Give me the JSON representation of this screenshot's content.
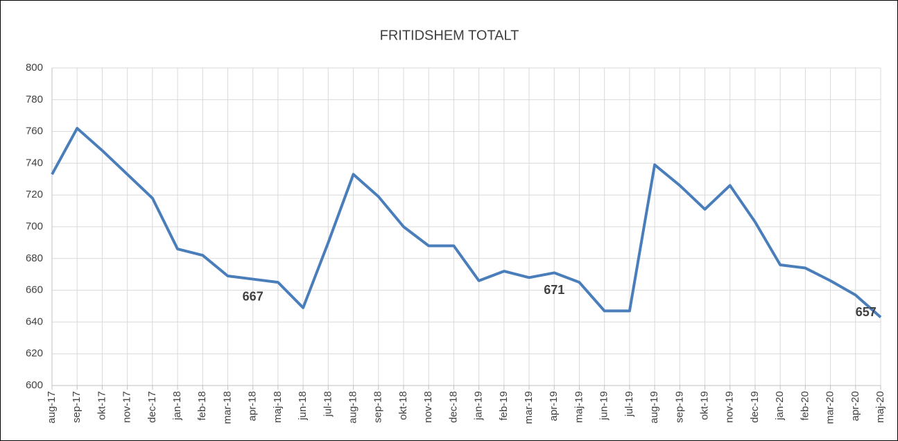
{
  "chart_data": {
    "type": "line",
    "title": "FRITIDSHEM TOTALT",
    "categories": [
      "aug-17",
      "sep-17",
      "okt-17",
      "nov-17",
      "dec-17",
      "jan-18",
      "feb-18",
      "mar-18",
      "apr-18",
      "maj-18",
      "jun-18",
      "jul-18",
      "aug-18",
      "sep-18",
      "okt-18",
      "nov-18",
      "dec-18",
      "jan-19",
      "feb-19",
      "mar-19",
      "apr-19",
      "maj-19",
      "jun-19",
      "jul-19",
      "aug-19",
      "sep-19",
      "okt-19",
      "nov-19",
      "dec-19",
      "jan-20",
      "feb-20",
      "mar-20",
      "apr-20",
      "maj-20"
    ],
    "series": [
      {
        "color": "#4a7ebb",
        "values": [
          733,
          762,
          748,
          733,
          718,
          686,
          682,
          669,
          667,
          665,
          649,
          690,
          733,
          719,
          700,
          688,
          688,
          666,
          672,
          668,
          671,
          665,
          647,
          647,
          739,
          726,
          711,
          726,
          703,
          676,
          674,
          666,
          657,
          643
        ]
      }
    ],
    "labeled_points": [
      8,
      20,
      32
    ],
    "ylim": [
      600,
      800
    ],
    "yticks": [
      600,
      620,
      640,
      660,
      680,
      700,
      720,
      740,
      760,
      780,
      800
    ],
    "grid": true
  }
}
